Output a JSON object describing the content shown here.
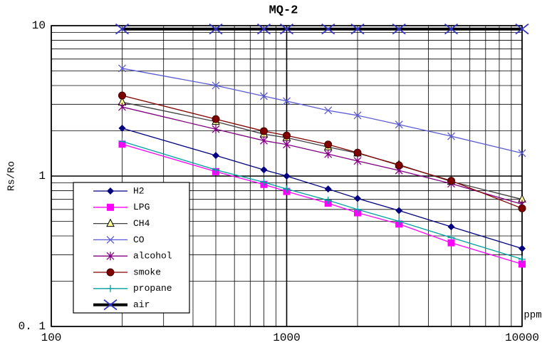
{
  "chart_data": {
    "type": "line",
    "title": "MQ-2",
    "y_label": "Rs/Ro",
    "x_unit": "ppm",
    "x_log": true,
    "y_log": true,
    "grid": true,
    "x": [
      200,
      500,
      800,
      1000,
      1500,
      2000,
      3000,
      5000,
      10000
    ],
    "xlim": [
      100,
      10000
    ],
    "xticks": [
      100,
      1000,
      10000
    ],
    "ylim": [
      0.1,
      10
    ],
    "yticks": [
      {
        "value": 0.1,
        "label": "0. 1"
      },
      1,
      10
    ],
    "series": [
      {
        "name": "H2",
        "color": "#000080",
        "marker": "diamond",
        "marker_color": "#000080",
        "values": [
          2.08,
          1.37,
          1.1,
          1.0,
          0.82,
          0.71,
          0.59,
          0.46,
          0.33
        ]
      },
      {
        "name": "LPG",
        "color": "#ff00ff",
        "marker": "square",
        "marker_color": "#ff00ff",
        "values": [
          1.63,
          1.07,
          0.88,
          0.79,
          0.66,
          0.57,
          0.48,
          0.36,
          0.26
        ]
      },
      {
        "name": "CH4",
        "color": "#404040",
        "marker": "triangle",
        "marker_color": "#ffff99",
        "values": [
          3.1,
          2.3,
          1.9,
          1.8,
          1.56,
          1.42,
          1.19,
          0.92,
          0.7
        ]
      },
      {
        "name": "CO",
        "color": "#5b5bd6",
        "marker": "x",
        "marker_color": "#5b5bd6",
        "values": [
          5.2,
          4.0,
          3.4,
          3.15,
          2.73,
          2.53,
          2.2,
          1.84,
          1.42
        ]
      },
      {
        "name": "alcohol",
        "color": "#800080",
        "marker": "asterisk",
        "marker_color": "#800080",
        "values": [
          2.88,
          2.05,
          1.72,
          1.62,
          1.4,
          1.26,
          1.09,
          0.89,
          0.65
        ]
      },
      {
        "name": "smoke",
        "color": "#800000",
        "marker": "circle",
        "marker_color": "#800000",
        "values": [
          3.43,
          2.39,
          1.99,
          1.86,
          1.62,
          1.43,
          1.18,
          0.93,
          0.61
        ]
      },
      {
        "name": "propane",
        "color": "#00a0a0",
        "marker": "plus",
        "marker_color": "#00a0a0",
        "values": [
          1.7,
          1.1,
          0.91,
          0.82,
          0.69,
          0.6,
          0.5,
          0.39,
          0.28
        ]
      },
      {
        "name": "air",
        "color": "#000000",
        "marker": "bigx",
        "marker_color": "#3333cc",
        "width": 4,
        "values": [
          9.5,
          9.5,
          9.5,
          9.5,
          9.5,
          9.5,
          9.5,
          9.5,
          9.5
        ]
      }
    ]
  }
}
